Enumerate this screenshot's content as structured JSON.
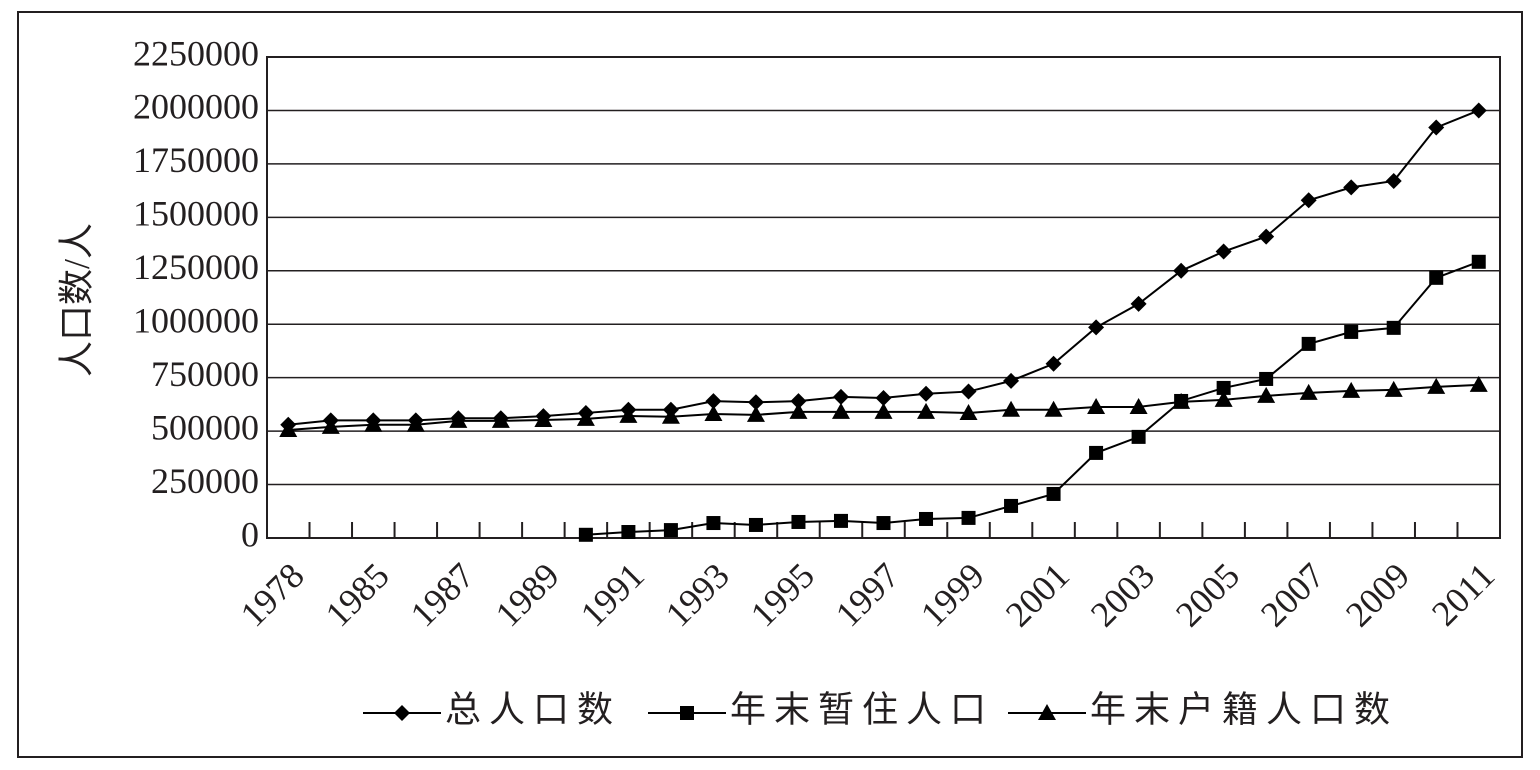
{
  "chart_data": {
    "type": "line",
    "ylabel": "人口数/人",
    "categories": [
      "1978",
      null,
      "1985",
      null,
      "1987",
      null,
      "1989",
      null,
      "1991",
      null,
      "1993",
      null,
      "1995",
      null,
      "1997",
      null,
      "1999",
      null,
      "2001",
      null,
      "2003",
      null,
      "2005",
      null,
      "2007",
      null,
      "2009",
      null,
      "2011"
    ],
    "series": [
      {
        "name": "总人口数",
        "color": "#000000",
        "marker": "diamond",
        "values": [
          530000,
          550000,
          550000,
          550000,
          560000,
          560000,
          570000,
          585000,
          600000,
          600000,
          640000,
          635000,
          640000,
          660000,
          655000,
          675000,
          685000,
          735000,
          815000,
          985000,
          1095000,
          1250000,
          1340000,
          1410000,
          1580000,
          1640000,
          1670000,
          1920000,
          2000000
        ]
      },
      {
        "name": "年末暂住人口",
        "color": "#000000",
        "marker": "square",
        "values": [
          null,
          null,
          null,
          null,
          null,
          null,
          null,
          15000,
          28000,
          37000,
          70000,
          61000,
          75000,
          80000,
          70000,
          89000,
          94000,
          150000,
          206000,
          398000,
          473000,
          641000,
          702000,
          744000,
          908000,
          964000,
          983000,
          1217000,
          1292000
        ]
      },
      {
        "name": "年末户籍人口数",
        "color": "#000000",
        "marker": "triangle",
        "values": [
          505000,
          520000,
          530000,
          530000,
          548000,
          548000,
          552000,
          557000,
          571000,
          567000,
          580000,
          576000,
          590000,
          590000,
          590000,
          590000,
          585000,
          600000,
          600000,
          613000,
          613000,
          637000,
          646000,
          665000,
          679000,
          688000,
          693000,
          707000,
          716000
        ]
      }
    ],
    "ylim": [
      0,
      2250000
    ],
    "yticks": [
      0,
      250000,
      500000,
      750000,
      1000000,
      1250000,
      1500000,
      1750000,
      2000000,
      2250000
    ],
    "grid": true
  }
}
